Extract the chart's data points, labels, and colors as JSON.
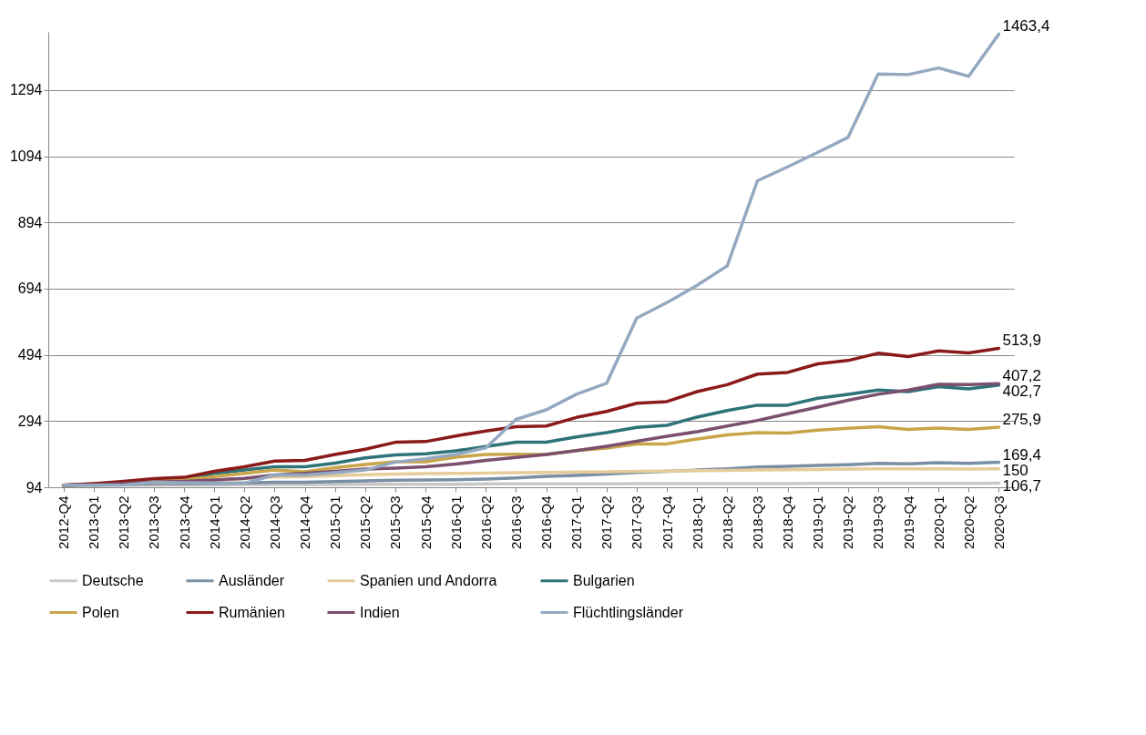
{
  "chart_data": {
    "type": "line",
    "categories": [
      "2012-Q4",
      "2013-Q1",
      "2013-Q2",
      "2013-Q3",
      "2013-Q4",
      "2014-Q1",
      "2014-Q2",
      "2014-Q3",
      "2014-Q4",
      "2015-Q1",
      "2015-Q2",
      "2015-Q3",
      "2015-Q4",
      "2016-Q1",
      "2016-Q2",
      "2016-Q3",
      "2016-Q4",
      "2017-Q1",
      "2017-Q2",
      "2017-Q3",
      "2017-Q4",
      "2018-Q1",
      "2018-Q2",
      "2018-Q3",
      "2018-Q4",
      "2019-Q1",
      "2019-Q2",
      "2019-Q3",
      "2019-Q4",
      "2020-Q1",
      "2020-Q2",
      "2020-Q3"
    ],
    "series": [
      {
        "name": "Deutsche",
        "color": "#c8c8c8",
        "values": [
          100,
          100,
          101,
          101,
          101,
          101,
          102,
          102,
          102,
          102,
          103,
          103,
          103,
          103,
          104,
          104,
          104,
          104,
          104,
          105,
          105,
          105,
          105,
          105,
          105,
          106,
          106,
          106,
          106,
          106,
          106,
          106.7
        ],
        "value_labels": [
          null,
          null,
          null,
          null,
          null,
          null,
          null,
          null,
          null,
          null,
          null,
          null,
          null,
          null,
          null,
          null,
          null,
          null,
          null,
          null,
          null,
          null,
          null,
          null,
          null,
          null,
          null,
          null,
          null,
          null,
          null,
          "106,7"
        ]
      },
      {
        "name": "Ausländer",
        "color": "#7a8fa3",
        "values": [
          100,
          101,
          102,
          104,
          105,
          106,
          107,
          109,
          109,
          111,
          113,
          115,
          116,
          117,
          119,
          122,
          127,
          130,
          134,
          139,
          142,
          146,
          150,
          155,
          157,
          160,
          162,
          166,
          165,
          168,
          166,
          169.4
        ],
        "value_labels": [
          null,
          null,
          null,
          null,
          null,
          null,
          null,
          null,
          null,
          null,
          null,
          null,
          null,
          null,
          null,
          null,
          null,
          null,
          null,
          null,
          null,
          null,
          null,
          null,
          null,
          null,
          null,
          null,
          null,
          null,
          null,
          "169,4"
        ]
      },
      {
        "name": "Spanien und Andorra",
        "color": "#e6cc9a",
        "values": [
          100,
          101,
          104,
          108,
          110,
          115,
          120,
          125,
          126,
          129,
          132,
          134,
          135,
          136,
          137,
          138,
          139,
          140,
          141,
          142,
          143,
          144,
          145,
          146,
          147,
          148,
          149,
          150,
          150,
          150,
          149,
          150
        ],
        "value_labels": [
          null,
          null,
          null,
          null,
          null,
          null,
          null,
          null,
          null,
          null,
          null,
          null,
          null,
          null,
          null,
          null,
          null,
          null,
          null,
          null,
          null,
          null,
          null,
          null,
          null,
          null,
          null,
          null,
          null,
          null,
          null,
          "150"
        ]
      },
      {
        "name": "Bulgarien",
        "color": "#2e7378",
        "values": [
          100,
          103,
          107,
          115,
          117,
          136,
          146,
          156,
          156,
          167,
          183,
          192,
          195,
          204,
          217,
          230,
          230,
          246,
          259,
          275,
          281,
          306,
          326,
          342,
          342,
          363,
          375,
          388,
          383,
          398,
          391,
          402.7
        ],
        "value_labels": [
          null,
          null,
          null,
          null,
          null,
          null,
          null,
          null,
          null,
          null,
          null,
          null,
          null,
          null,
          null,
          null,
          null,
          null,
          null,
          null,
          null,
          null,
          null,
          null,
          null,
          null,
          null,
          null,
          null,
          null,
          null,
          "402,7"
        ]
      },
      {
        "name": "Polen",
        "color": "#c9a54a",
        "values": [
          100,
          104,
          110,
          118,
          117,
          126,
          136,
          146,
          141,
          153,
          163,
          171,
          171,
          185,
          193,
          194,
          193,
          205,
          212,
          225,
          225,
          240,
          252,
          259,
          258,
          267,
          272,
          277,
          269,
          273,
          269,
          275.9
        ],
        "value_labels": [
          null,
          null,
          null,
          null,
          null,
          null,
          null,
          null,
          null,
          null,
          null,
          null,
          null,
          null,
          null,
          null,
          null,
          null,
          null,
          null,
          null,
          null,
          null,
          null,
          null,
          null,
          null,
          null,
          null,
          null,
          null,
          "275,9"
        ]
      },
      {
        "name": "Rumänien",
        "color": "#8b1a1a",
        "values": [
          100,
          105,
          112,
          120,
          124,
          142,
          156,
          173,
          175,
          193,
          209,
          230,
          232,
          249,
          264,
          277,
          279,
          305,
          323,
          348,
          353,
          383,
          404,
          436,
          441,
          467,
          477,
          499,
          489,
          506,
          500,
          513.9
        ],
        "value_labels": [
          null,
          null,
          null,
          null,
          null,
          null,
          null,
          null,
          null,
          null,
          null,
          null,
          null,
          null,
          null,
          null,
          null,
          null,
          null,
          null,
          null,
          null,
          null,
          null,
          null,
          null,
          null,
          null,
          null,
          null,
          null,
          "513,9"
        ]
      },
      {
        "name": "Indien",
        "color": "#7b4f6e",
        "values": [
          100,
          102,
          105,
          110,
          112,
          116,
          121,
          131,
          136,
          142,
          149,
          152,
          156,
          164,
          175,
          184,
          193,
          205,
          218,
          233,
          248,
          262,
          279,
          296,
          316,
          336,
          357,
          375,
          388,
          405,
          404,
          407.2
        ],
        "value_labels": [
          null,
          null,
          null,
          null,
          null,
          null,
          null,
          null,
          null,
          null,
          null,
          null,
          null,
          null,
          null,
          null,
          null,
          null,
          null,
          null,
          null,
          null,
          null,
          null,
          null,
          null,
          null,
          null,
          null,
          null,
          null,
          "407,2"
        ]
      },
      {
        "name": "Flüchtlingsländer",
        "color": "#94a9c0",
        "values": [
          100,
          100,
          101,
          109,
          108,
          107,
          106,
          131,
          131,
          138,
          146,
          170,
          180,
          193,
          213,
          299,
          328,
          375,
          408,
          605,
          652,
          704,
          763,
          1020,
          1062,
          1106,
          1151,
          1343,
          1341,
          1361,
          1336,
          1463.4
        ],
        "value_labels": [
          null,
          null,
          null,
          null,
          null,
          null,
          null,
          null,
          null,
          null,
          null,
          null,
          null,
          null,
          null,
          null,
          null,
          null,
          null,
          null,
          null,
          null,
          null,
          null,
          null,
          null,
          null,
          null,
          null,
          null,
          null,
          "1463,4"
        ]
      }
    ],
    "ylim": [
      94,
      1470
    ],
    "yticks": [
      94,
      294,
      494,
      694,
      894,
      1094,
      1294
    ],
    "grid": "y",
    "legend": "bottom"
  }
}
